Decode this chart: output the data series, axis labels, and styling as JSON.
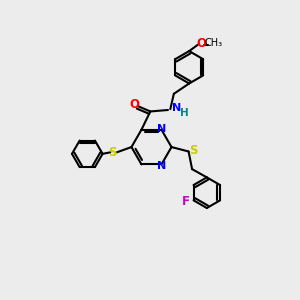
{
  "bg_color": "#ececec",
  "bond_color": "#000000",
  "bond_width": 1.5,
  "figsize": [
    3.0,
    3.0
  ],
  "dpi": 100,
  "colors": {
    "N": "#0000ff",
    "O": "#ff0000",
    "S": "#cccc00",
    "F": "#cc00cc",
    "NH": "#008888",
    "C": "#000000"
  }
}
